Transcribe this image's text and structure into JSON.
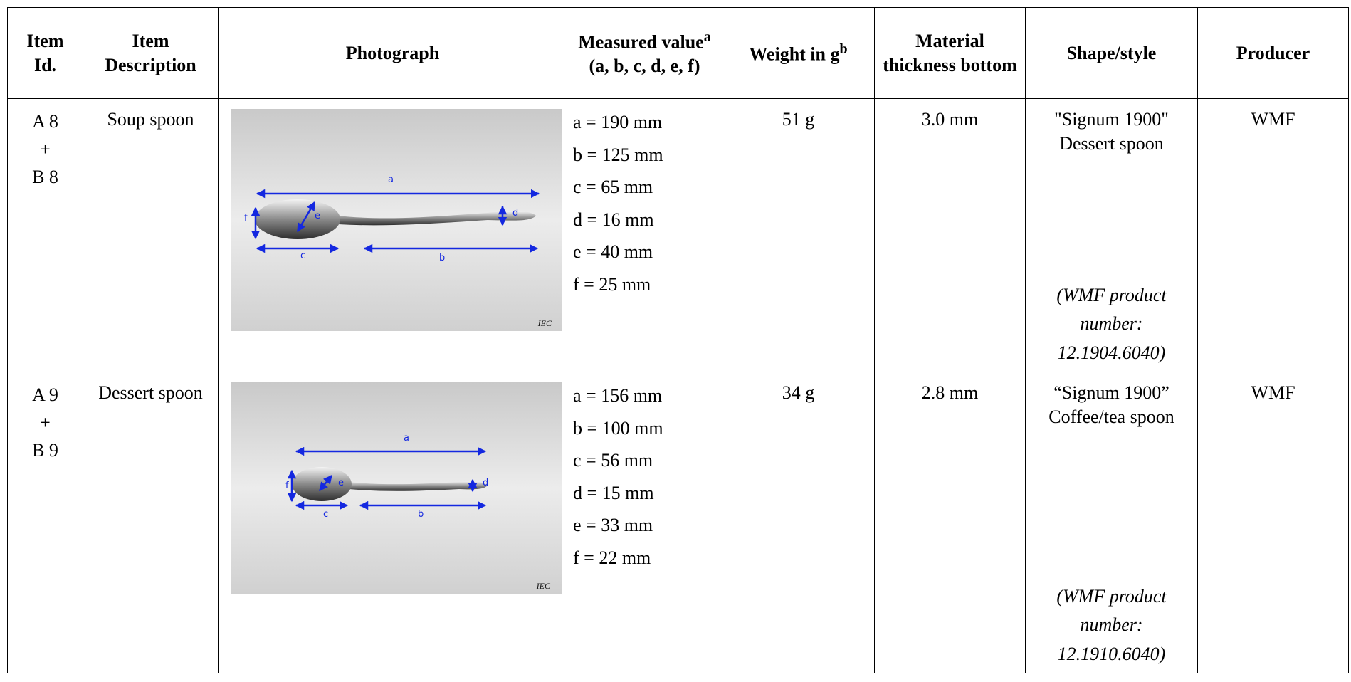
{
  "table": {
    "header": [
      "Item Id.",
      "Item Description",
      "Photograph",
      {
        "main": "Measured value",
        "sup": "a",
        "rest": "(a, b, c, d, e, f)"
      },
      {
        "main": "Weight in g",
        "sup": "b"
      },
      "Material thickness bottom",
      "Shape/style",
      "Producer"
    ],
    "rows": [
      {
        "id": [
          "A 8",
          "+",
          "B 8"
        ],
        "description": "Soup spoon",
        "photo": {
          "labels": [
            "a",
            "b",
            "c",
            "d",
            "e",
            "f"
          ],
          "credit": "IEC"
        },
        "measured": [
          "a = 190 mm",
          "b = 125 mm",
          "c = 65 mm",
          "d = 16 mm",
          "e = 40 mm",
          "f =  25 mm"
        ],
        "weight": "51 g",
        "thickness": "3.0 mm",
        "shape": "\"Signum 1900\" Dessert spoon",
        "note": "(WMF product number: 12.1904.6040)",
        "producer": "WMF"
      },
      {
        "id": [
          "A 9",
          "+",
          "B 9"
        ],
        "description": "Dessert spoon",
        "photo": {
          "labels": [
            "a",
            "b",
            "c",
            "d",
            "e",
            "f"
          ],
          "credit": "IEC"
        },
        "measured": [
          "a = 156 mm",
          "b = 100 mm",
          "c = 56 mm",
          "d = 15 mm",
          "e = 33 mm",
          "f = 22 mm"
        ],
        "weight": "34 g",
        "thickness": "2.8 mm",
        "shape": "“Signum 1900” Coffee/tea spoon",
        "note": "(WMF product number: 12.1910.6040)",
        "producer": "WMF"
      }
    ]
  }
}
